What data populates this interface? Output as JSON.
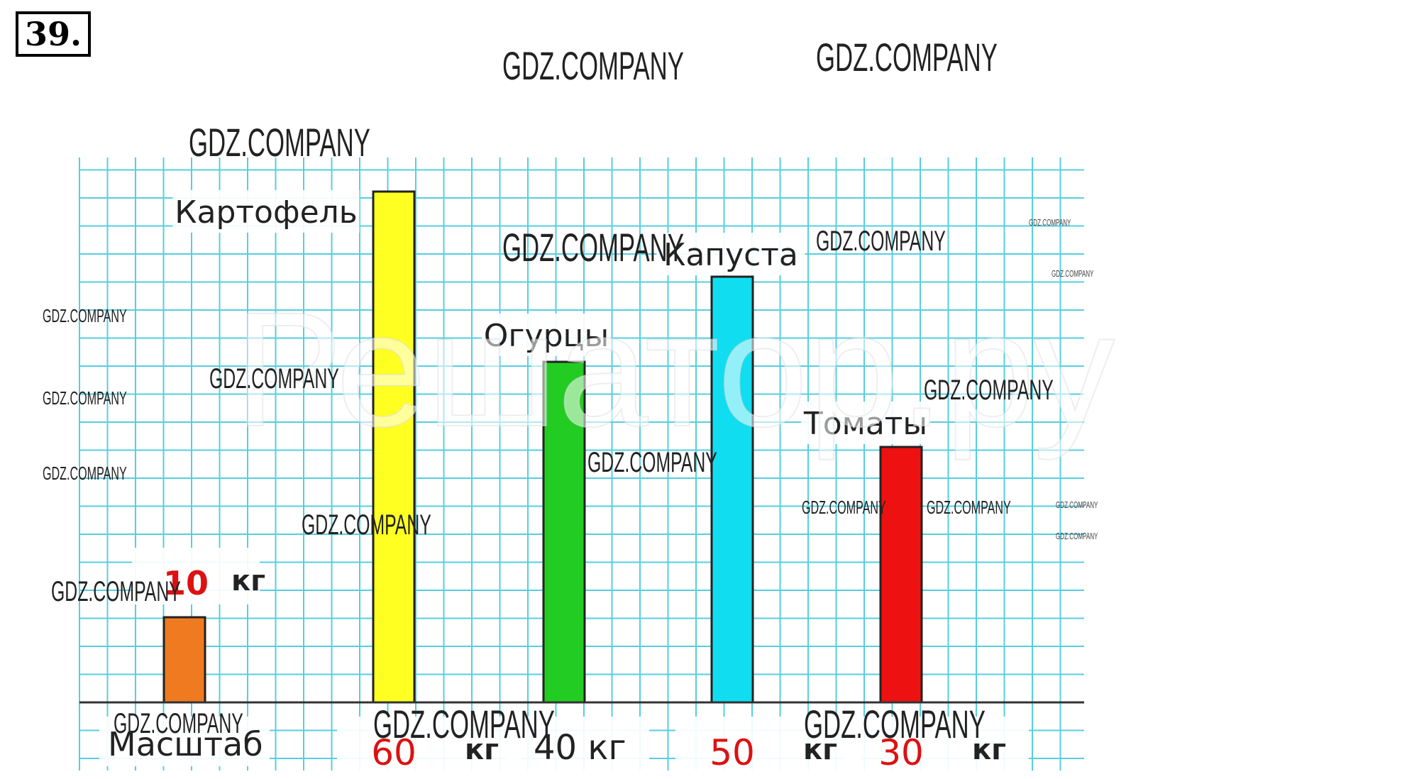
{
  "task_number": "39.",
  "chart_data": {
    "type": "bar",
    "title": "",
    "xlabel": "",
    "ylabel": "",
    "ylim": [
      0,
      60
    ],
    "grid": true,
    "categories": [
      "Масштаб",
      "Картофель",
      "Огурцы",
      "Капуста",
      "Томаты"
    ],
    "series": [
      {
        "values": [
          10,
          60,
          40,
          50,
          30
        ]
      }
    ],
    "bar_colors": [
      "#f07a20",
      "#ffff22",
      "#22cc22",
      "#11ddf0",
      "#ee1111"
    ],
    "scale_value": "10",
    "scale_label": "Масштаб",
    "unit": "кг",
    "value_labels": [
      "60",
      "40",
      "50",
      "30"
    ],
    "value_label_colors": [
      "#dd1111",
      "#222222",
      "#dd1111",
      "#dd1111"
    ],
    "grid_color": "#55cfe0",
    "axis_color": "#333333"
  },
  "watermark": "GDZ.COMPANY",
  "background_watermark": "Решатор.ру"
}
